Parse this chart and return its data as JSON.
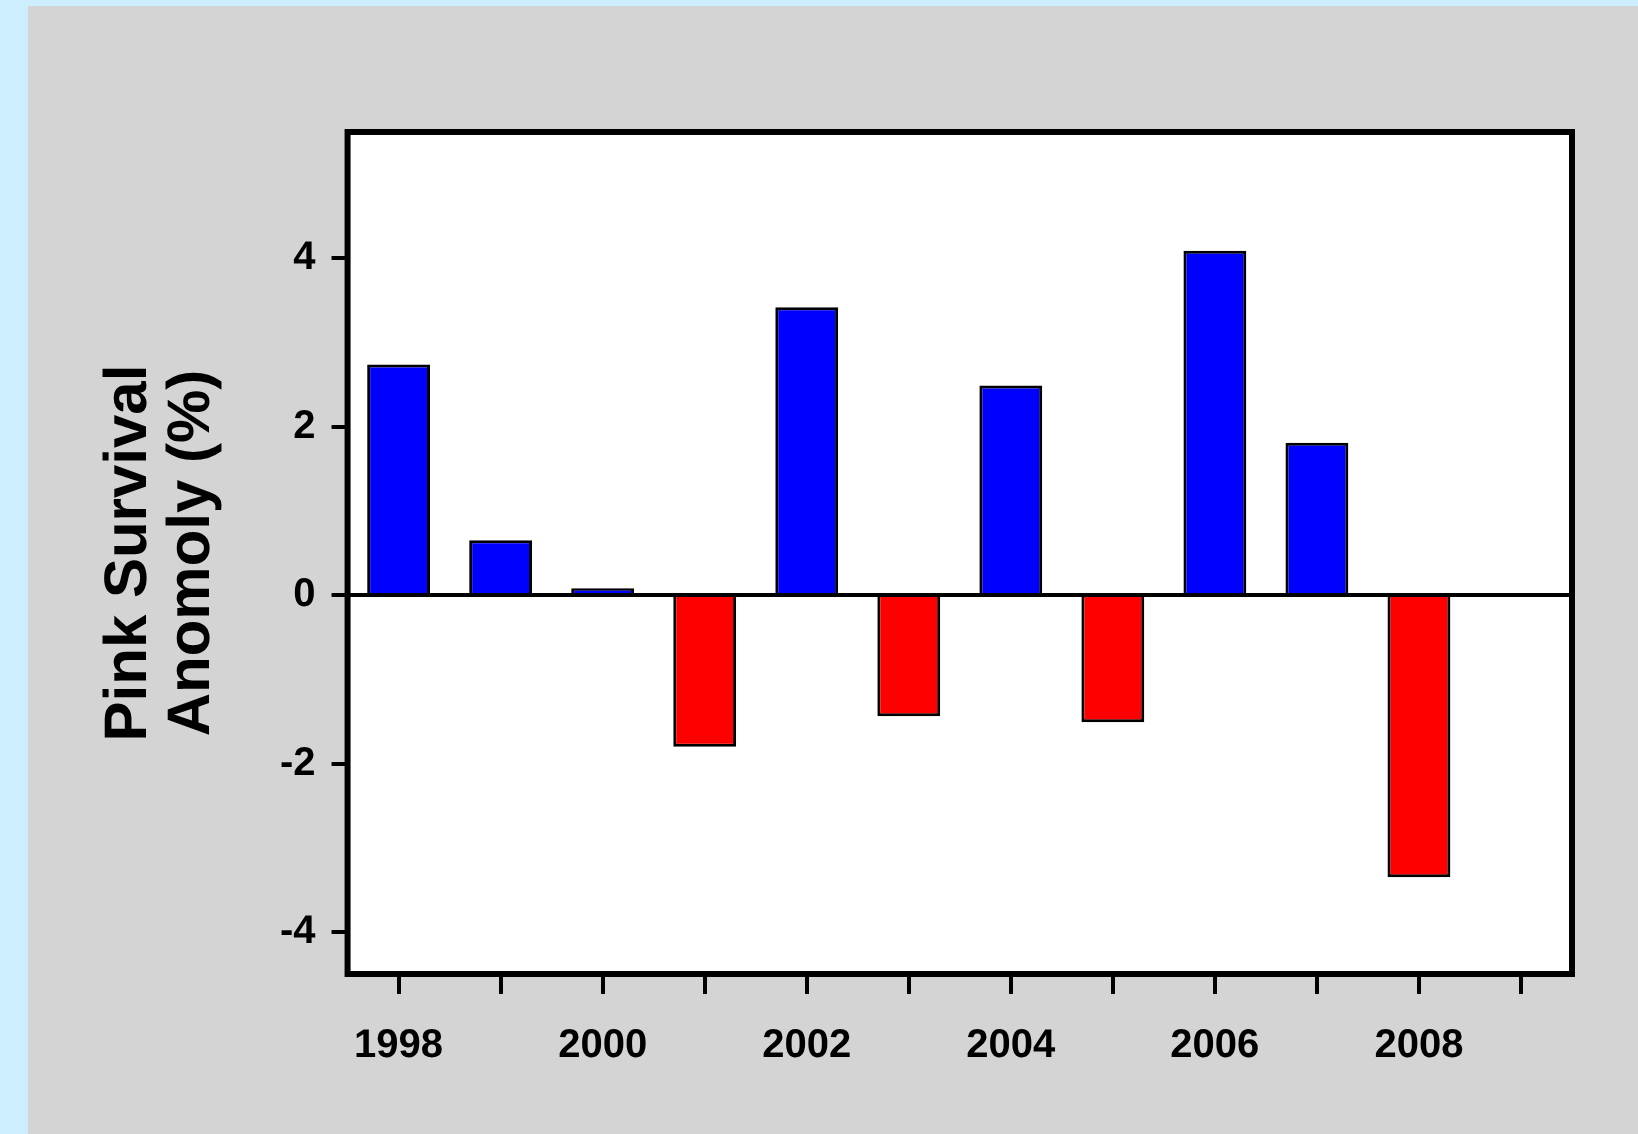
{
  "chart_data": {
    "type": "bar",
    "ylabel": "Pink Survival Anomoly (%)",
    "x": [
      1998,
      1999,
      2000,
      2001,
      2002,
      2003,
      2004,
      2005,
      2006,
      2007,
      2008
    ],
    "values": [
      2.74,
      0.65,
      0.08,
      -1.8,
      3.42,
      -1.44,
      2.49,
      -1.51,
      4.09,
      1.81,
      -3.35
    ],
    "colors": [
      "#0000ff",
      "#0000ff",
      "#0000ff",
      "#ff0000",
      "#0000ff",
      "#ff0000",
      "#0000ff",
      "#ff0000",
      "#0000ff",
      "#0000ff",
      "#ff0000"
    ],
    "xlim": [
      1997.5,
      2009.5
    ],
    "xticks": [
      1998,
      {
        "value": 1999,
        "label": null
      },
      2000,
      {
        "value": 2001,
        "label": null
      },
      2002,
      {
        "value": 2003,
        "label": null
      },
      2004,
      {
        "value": 2005,
        "label": null
      },
      2006,
      {
        "value": 2007,
        "label": null
      },
      2008,
      {
        "value": 2009,
        "label": null
      }
    ],
    "ylim": [
      -4.5,
      5.5
    ],
    "yticks": [
      -4,
      -2,
      0,
      2,
      4
    ],
    "ref_lines": [
      {
        "axis": "y",
        "value": 0,
        "color": "#000000"
      }
    ],
    "grid": false,
    "legend": false
  }
}
